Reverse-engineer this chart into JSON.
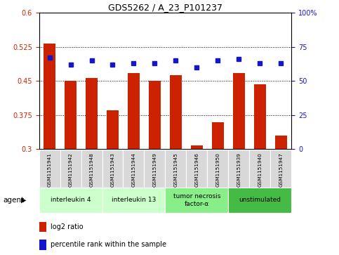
{
  "title": "GDS5262 / A_23_P101237",
  "samples": [
    "GSM1151941",
    "GSM1151942",
    "GSM1151948",
    "GSM1151943",
    "GSM1151944",
    "GSM1151949",
    "GSM1151945",
    "GSM1151946",
    "GSM1151950",
    "GSM1151939",
    "GSM1151940",
    "GSM1151947"
  ],
  "log2_ratio": [
    0.533,
    0.45,
    0.457,
    0.385,
    0.467,
    0.45,
    0.463,
    0.308,
    0.36,
    0.468,
    0.443,
    0.33
  ],
  "percentile": [
    67,
    62,
    65,
    62,
    63,
    63,
    65,
    60,
    65,
    66,
    63,
    63
  ],
  "ylim_left": [
    0.3,
    0.6
  ],
  "ylim_right": [
    0,
    100
  ],
  "yticks_left": [
    0.3,
    0.375,
    0.45,
    0.525,
    0.6
  ],
  "yticks_right": [
    0,
    25,
    50,
    75,
    100
  ],
  "bar_color": "#cc2200",
  "dot_color": "#1515cc",
  "groups": [
    {
      "label": "interleukin 4",
      "start": 0,
      "end": 3,
      "color": "#ccffcc"
    },
    {
      "label": "interleukin 13",
      "start": 3,
      "end": 6,
      "color": "#ccffcc"
    },
    {
      "label": "tumor necrosis\nfactor-α",
      "start": 6,
      "end": 9,
      "color": "#88ee88"
    },
    {
      "label": "unstimulated",
      "start": 9,
      "end": 12,
      "color": "#44bb44"
    }
  ],
  "legend_labels": [
    "log2 ratio",
    "percentile rank within the sample"
  ],
  "bar_bottom": 0.3,
  "tick_color_left": "#cc2200",
  "tick_color_right": "#1515cc"
}
